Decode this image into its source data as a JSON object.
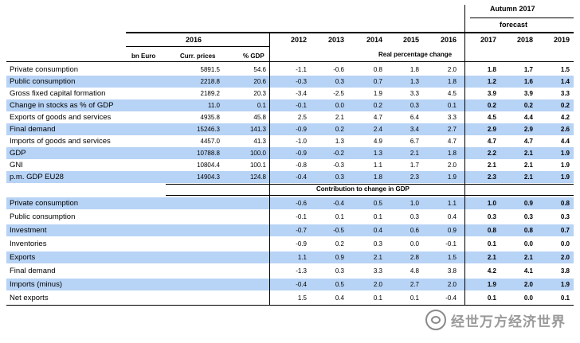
{
  "header": {
    "forecast_title": "Autumn 2017",
    "forecast_label": "forecast",
    "base_year": "2016",
    "unit_label": "bn Euro",
    "curr_prices_label": "Curr. prices",
    "pct_gdp_label": "% GDP",
    "years": [
      "2012",
      "2013",
      "2014",
      "2015",
      "2016",
      "2017",
      "2018",
      "2019"
    ],
    "section1_title": "Real percentage change",
    "section2_title": "Contribution to change in GDP"
  },
  "section1_rows": [
    {
      "label": "Private consumption",
      "curr": "5891.5",
      "pct": "54.6",
      "values": [
        "-1.1",
        "-0.6",
        "0.8",
        "1.8",
        "2.0",
        "1.8",
        "1.7",
        "1.5"
      ],
      "highlight": false
    },
    {
      "label": "Public consumption",
      "curr": "2218.8",
      "pct": "20.6",
      "values": [
        "-0.3",
        "0.3",
        "0.7",
        "1.3",
        "1.8",
        "1.2",
        "1.6",
        "1.4"
      ],
      "highlight": true
    },
    {
      "label": "Gross fixed capital formation",
      "curr": "2189.2",
      "pct": "20.3",
      "values": [
        "-3.4",
        "-2.5",
        "1.9",
        "3.3",
        "4.5",
        "3.9",
        "3.9",
        "3.3"
      ],
      "highlight": false
    },
    {
      "label": "Change in stocks as % of GDP",
      "curr": "11.0",
      "pct": "0.1",
      "values": [
        "-0.1",
        "0.0",
        "0.2",
        "0.3",
        "0.1",
        "0.2",
        "0.2",
        "0.2"
      ],
      "highlight": true
    },
    {
      "label": "Exports of goods and services",
      "curr": "4935.8",
      "pct": "45.8",
      "values": [
        "2.5",
        "2.1",
        "4.7",
        "6.4",
        "3.3",
        "4.5",
        "4.4",
        "4.2"
      ],
      "highlight": false
    },
    {
      "label": "Final demand",
      "curr": "15246.3",
      "pct": "141.3",
      "values": [
        "-0.9",
        "0.2",
        "2.4",
        "3.4",
        "2.7",
        "2.9",
        "2.9",
        "2.6"
      ],
      "highlight": true
    },
    {
      "label": "Imports of goods and services",
      "curr": "4457.0",
      "pct": "41.3",
      "values": [
        "-1.0",
        "1.3",
        "4.9",
        "6.7",
        "4.7",
        "4.7",
        "4.7",
        "4.4"
      ],
      "highlight": false
    },
    {
      "label": "GDP",
      "curr": "10788.8",
      "pct": "100.0",
      "values": [
        "-0.9",
        "-0.2",
        "1.3",
        "2.1",
        "1.8",
        "2.2",
        "2.1",
        "1.9"
      ],
      "highlight": true
    },
    {
      "label": "GNI",
      "curr": "10804.4",
      "pct": "100.1",
      "values": [
        "-0.8",
        "-0.3",
        "1.1",
        "1.7",
        "2.0",
        "2.1",
        "2.1",
        "1.9"
      ],
      "highlight": false
    },
    {
      "label": "p.m. GDP EU28",
      "curr": "14904.3",
      "pct": "124.8",
      "values": [
        "-0.4",
        "0.3",
        "1.8",
        "2.3",
        "1.9",
        "2.3",
        "2.1",
        "1.9"
      ],
      "highlight": true
    }
  ],
  "section2_rows": [
    {
      "label": "Private consumption",
      "values": [
        "-0.6",
        "-0.4",
        "0.5",
        "1.0",
        "1.1",
        "1.0",
        "0.9",
        "0.8"
      ],
      "highlight": true
    },
    {
      "label": "Public consumption",
      "values": [
        "-0.1",
        "0.1",
        "0.1",
        "0.3",
        "0.4",
        "0.3",
        "0.3",
        "0.3"
      ],
      "highlight": false
    },
    {
      "label": "Investment",
      "values": [
        "-0.7",
        "-0.5",
        "0.4",
        "0.6",
        "0.9",
        "0.8",
        "0.8",
        "0.7"
      ],
      "highlight": true
    },
    {
      "label": "Inventories",
      "values": [
        "-0.9",
        "0.2",
        "0.3",
        "0.0",
        "-0.1",
        "0.1",
        "0.0",
        "0.0"
      ],
      "highlight": false
    },
    {
      "label": "Exports",
      "values": [
        "1.1",
        "0.9",
        "2.1",
        "2.8",
        "1.5",
        "2.1",
        "2.1",
        "2.0"
      ],
      "highlight": true
    },
    {
      "label": "Final demand",
      "values": [
        "-1.3",
        "0.3",
        "3.3",
        "4.8",
        "3.8",
        "4.2",
        "4.1",
        "3.8"
      ],
      "highlight": false
    },
    {
      "label": "Imports (minus)",
      "values": [
        "-0.4",
        "0.5",
        "2.0",
        "2.7",
        "2.0",
        "1.9",
        "2.0",
        "1.9"
      ],
      "highlight": true
    },
    {
      "label": "Net exports",
      "values": [
        "1.5",
        "0.4",
        "0.1",
        "0.1",
        "-0.4",
        "0.1",
        "0.0",
        "0.1"
      ],
      "highlight": false
    }
  ],
  "watermark": {
    "text": "经世万方经济世界",
    "icon": "wechat-icon"
  }
}
